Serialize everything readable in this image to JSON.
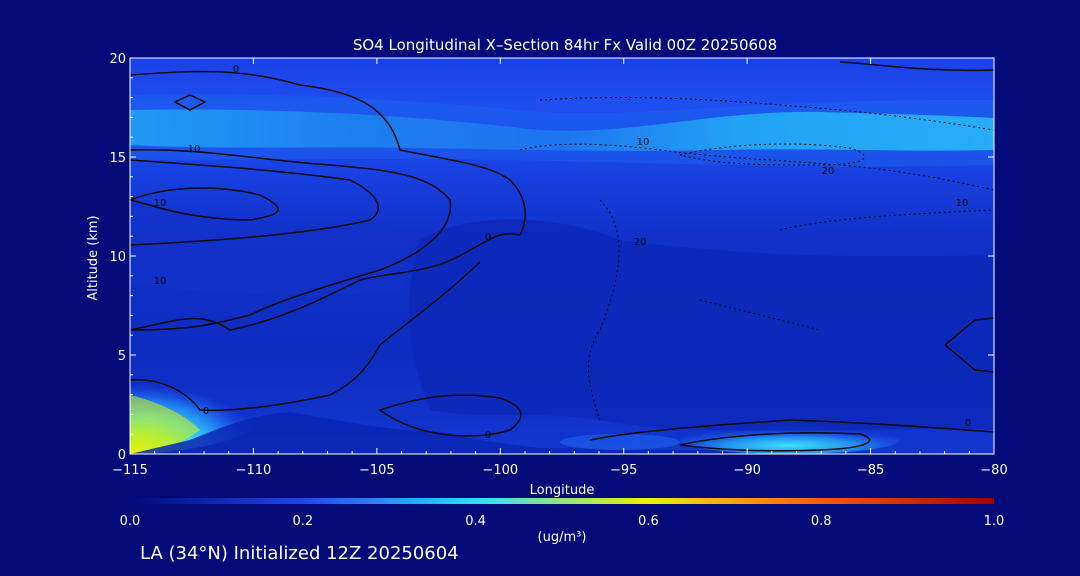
{
  "chart_data": {
    "type": "heatmap",
    "title": "SO4 Longitudinal X–Section 84hr  Fx Valid 00Z 20250608",
    "xlabel": "Longitude",
    "ylabel": "Altitude (km)",
    "xlim": [
      -115,
      -80
    ],
    "ylim": [
      0,
      20
    ],
    "x_ticks": [
      -115,
      -110,
      -105,
      -100,
      -95,
      -90,
      -85,
      -80
    ],
    "x_tick_labels": [
      "−115",
      "−110",
      "−105",
      "−100",
      "−95",
      "−90",
      "−85",
      "−80"
    ],
    "y_ticks": [
      0,
      5,
      10,
      15,
      20
    ],
    "y_tick_labels": [
      "0",
      "5",
      "10",
      "15",
      "20"
    ],
    "colorbar": {
      "min": 0.0,
      "max": 1.0,
      "tick_labels": [
        "0.0",
        "0.2",
        "0.4",
        "0.6",
        "0.8",
        "1.0"
      ],
      "units": "(ug/m³)",
      "colors": [
        "#000a78",
        "#1e46f0",
        "#32dcff",
        "#f0f000",
        "#ff5a00",
        "#a00000"
      ]
    },
    "background": "#000a78",
    "features": [
      {
        "description_value": "high layer",
        "altitude_km": 16.5,
        "value": 0.35
      },
      {
        "description_value": "surface plume west",
        "lon": -114.5,
        "altitude_km": 0.5,
        "value": 0.6
      },
      {
        "description_value": "surface plume east",
        "lon": -88,
        "altitude_km": 0.6,
        "value": 0.33
      }
    ],
    "contour_labels": [
      "0",
      "0",
      "0",
      "0",
      "0",
      "10",
      "10",
      "10",
      "10",
      "10",
      "20",
      "20"
    ]
  },
  "footer": "LA (34°N) Initialized 12Z 20250604"
}
